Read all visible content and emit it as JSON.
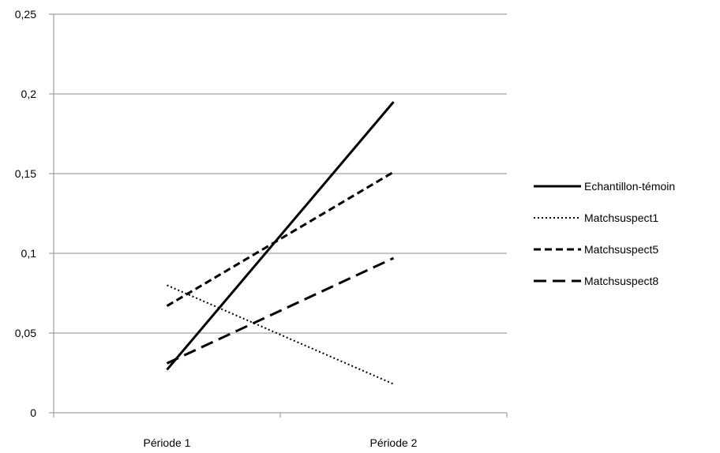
{
  "chart_data": {
    "type": "line",
    "title": "",
    "xlabel": "",
    "ylabel": "",
    "categories": [
      "Période 1",
      "Période 2"
    ],
    "ylim": [
      0,
      0.25
    ],
    "yticks": [
      "0",
      "0,05",
      "0,1",
      "0,15",
      "0,2",
      "0,25"
    ],
    "grid": "horizontal",
    "legend_position": "right",
    "series": [
      {
        "name": "Echantillon-témoin",
        "values": [
          0.027,
          0.195
        ],
        "style": "solid",
        "color": "#000000"
      },
      {
        "name": "Matchsuspect1",
        "values": [
          0.08,
          0.018
        ],
        "style": "dotted",
        "color": "#000000"
      },
      {
        "name": "Matchsuspect5",
        "values": [
          0.067,
          0.151
        ],
        "style": "dashed",
        "color": "#000000"
      },
      {
        "name": "Matchsuspect8",
        "values": [
          0.031,
          0.097
        ],
        "style": "long-dashed",
        "color": "#000000"
      }
    ]
  }
}
